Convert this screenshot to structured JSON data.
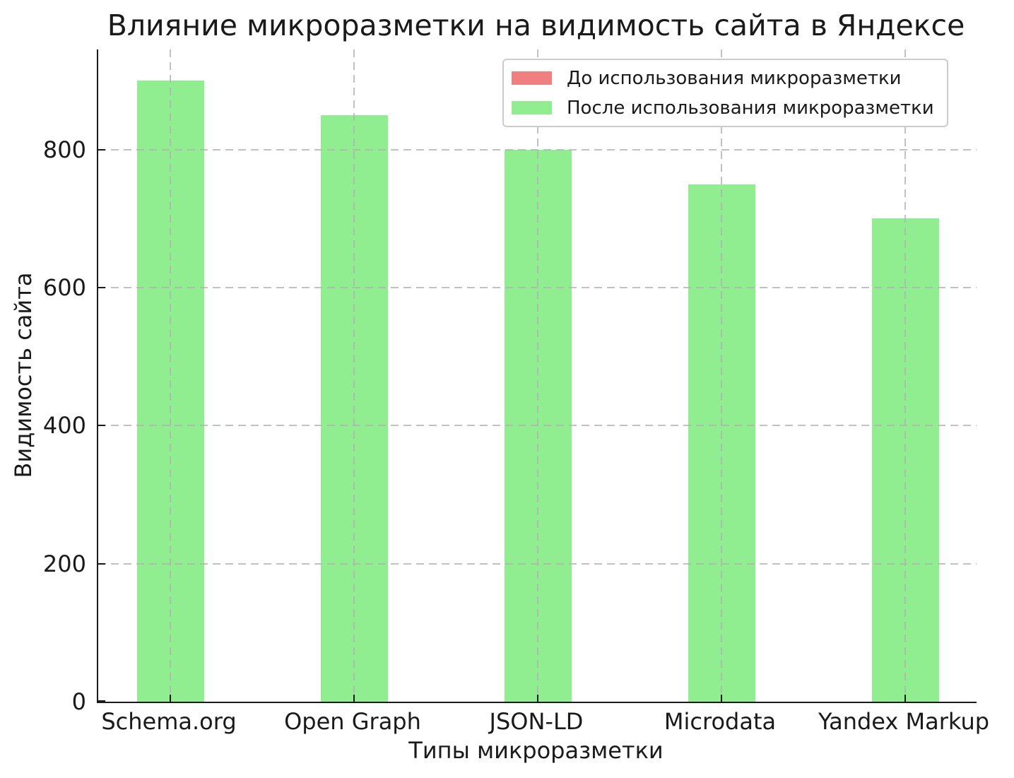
{
  "chart_data": {
    "type": "bar",
    "title": "Влияние микроразметки на видимость сайта в Яндексе",
    "xlabel": "Типы микроразметки",
    "ylabel": "Видимость сайта",
    "categories": [
      "Schema.org",
      "Open Graph",
      "JSON-LD",
      "Microdata",
      "Yandex Markup"
    ],
    "series": [
      {
        "name": "До использования микроразметки",
        "color": "#f08080",
        "values": null,
        "visible_in_plot": false,
        "note": "legend entry only — no bars of this color are visible in the plot"
      },
      {
        "name": "После использования микроразметки",
        "color": "#90ee90",
        "values": [
          900,
          850,
          800,
          750,
          700
        ],
        "visible_in_plot": true
      }
    ],
    "ylim": [
      0,
      945
    ],
    "yticks": [
      0,
      200,
      400,
      600,
      800
    ],
    "grid": {
      "visible": true,
      "style": "dashed",
      "drawn_above_bars": true
    },
    "legend_position": "upper right",
    "tick_direction": "in"
  },
  "colors": {
    "background": "#ffffff",
    "axis": "#1a1a1a",
    "grid": "#b2b2b2",
    "series_before": "#f08080",
    "series_after": "#90ee90",
    "legend_border": "#cccccc"
  }
}
